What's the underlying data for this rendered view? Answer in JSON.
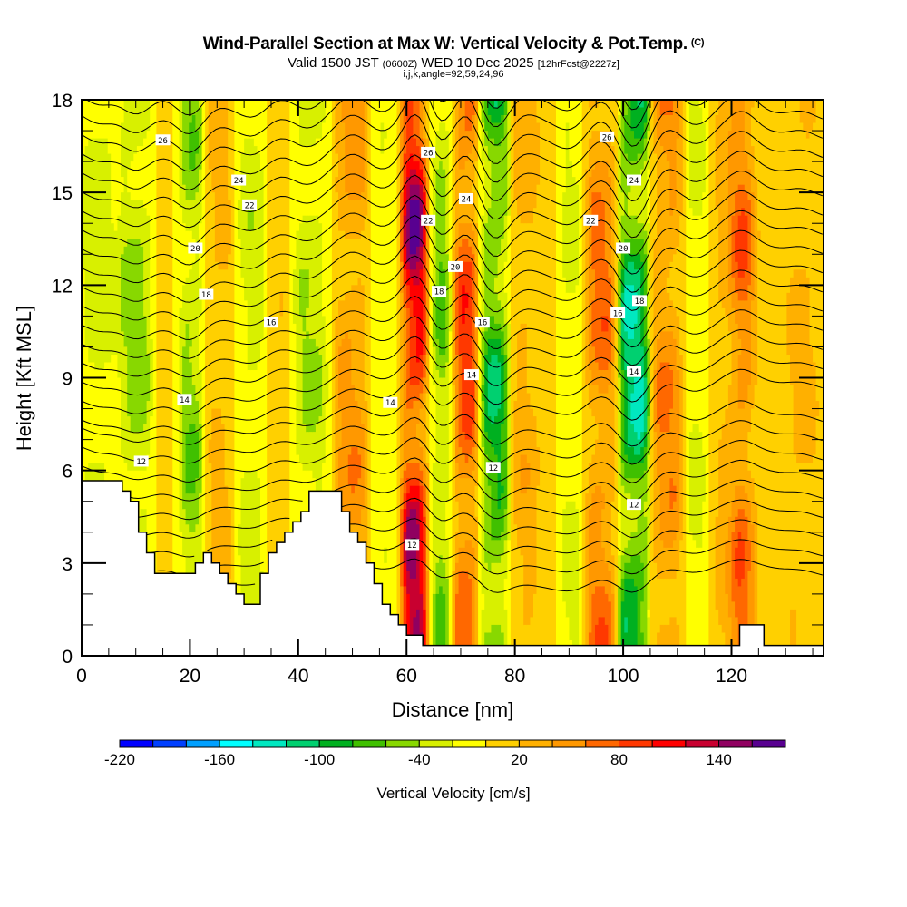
{
  "header": {
    "title": "Wind-Parallel Section at Max W: Vertical Velocity & Pot.Temp.",
    "copyright": "(C)",
    "valid_prefix": "Valid 1500 JST",
    "valid_utc": "(0600Z)",
    "valid_date": "WED 10 Dec 2025",
    "forecast": "[12hrFcst@2227z]",
    "indices": "i,j,k,angle=92,59,24,96"
  },
  "chart_data": {
    "type": "heatmap",
    "title": "Wind-Parallel Section at Max W: Vertical Velocity & Pot.Temp.",
    "xlabel": "Distance [nm]",
    "ylabel": "Height [Kft MSL]",
    "xlim": [
      0,
      137
    ],
    "ylim": [
      0,
      18
    ],
    "x_ticks": [
      "0",
      "20",
      "40",
      "60",
      "80",
      "100",
      "120"
    ],
    "y_ticks": [
      "0",
      "3",
      "6",
      "9",
      "12",
      "15",
      "18"
    ],
    "grid": false,
    "colorbar": {
      "title": "Vertical Velocity [cm/s]",
      "placement": "bottom",
      "levels": [
        -220,
        -200,
        -180,
        -160,
        -140,
        -120,
        -100,
        -80,
        -60,
        -40,
        -20,
        0,
        20,
        40,
        60,
        80,
        100,
        120,
        140,
        160,
        180
      ],
      "tick_labels": [
        "-220",
        "-160",
        "-100",
        "-40",
        "20",
        "80",
        "140"
      ],
      "colors": [
        "#0000ff",
        "#0040ff",
        "#00a0ff",
        "#00ffff",
        "#00e8c0",
        "#00d070",
        "#00b020",
        "#40c000",
        "#88d800",
        "#d8f000",
        "#ffff00",
        "#ffd000",
        "#ffb000",
        "#ff9800",
        "#ff6800",
        "#ff3800",
        "#ff0000",
        "#c80030",
        "#900060",
        "#580090"
      ]
    },
    "contour_labels": [
      "26",
      "24",
      "22",
      "20",
      "18",
      "16",
      "14",
      "12"
    ],
    "velocity_columns": [
      {
        "x": 3,
        "w": -40
      },
      {
        "x": 10,
        "w": -60
      },
      {
        "x": 16,
        "w": 10
      },
      {
        "x": 20,
        "w": -70
      },
      {
        "x": 25,
        "w": 30
      },
      {
        "x": 32,
        "w": -40
      },
      {
        "x": 36,
        "w": 20
      },
      {
        "x": 42,
        "w": -50
      },
      {
        "x": 50,
        "w": 60
      },
      {
        "x": 56,
        "w": -20
      },
      {
        "x": 62,
        "w": 170
      },
      {
        "x": 66,
        "w": -80
      },
      {
        "x": 71,
        "w": 110
      },
      {
        "x": 76,
        "w": -110
      },
      {
        "x": 82,
        "w": 40
      },
      {
        "x": 86,
        "w": 10
      },
      {
        "x": 90,
        "w": -30
      },
      {
        "x": 96,
        "w": 80
      },
      {
        "x": 102,
        "w": -140
      },
      {
        "x": 108,
        "w": 70
      },
      {
        "x": 114,
        "w": -30
      },
      {
        "x": 118,
        "w": 30
      },
      {
        "x": 122,
        "w": 90
      },
      {
        "x": 126,
        "w": 10
      },
      {
        "x": 133,
        "w": 30
      }
    ],
    "terrain_kft": [
      [
        0,
        5.6
      ],
      [
        7,
        5.6
      ],
      [
        9,
        4.9
      ],
      [
        12,
        3.3
      ],
      [
        14,
        2.5
      ],
      [
        18,
        2.5
      ],
      [
        20,
        2.7
      ],
      [
        22,
        3.5
      ],
      [
        24,
        3.0
      ],
      [
        28,
        2.2
      ],
      [
        30,
        1.6
      ],
      [
        32,
        1.9
      ],
      [
        34,
        3.1
      ],
      [
        36,
        3.8
      ],
      [
        40,
        4.7
      ],
      [
        43,
        5.4
      ],
      [
        46,
        5.4
      ],
      [
        48,
        4.6
      ],
      [
        52,
        3.3
      ],
      [
        54,
        2.4
      ],
      [
        56,
        1.6
      ],
      [
        58,
        1.1
      ],
      [
        60,
        0.8
      ],
      [
        64,
        0.35
      ],
      [
        68,
        0.35
      ],
      [
        73,
        0.35
      ],
      [
        120,
        0.35
      ],
      [
        121,
        1.1
      ],
      [
        124,
        1.1
      ],
      [
        126,
        0.35
      ],
      [
        137,
        0.35
      ]
    ]
  }
}
